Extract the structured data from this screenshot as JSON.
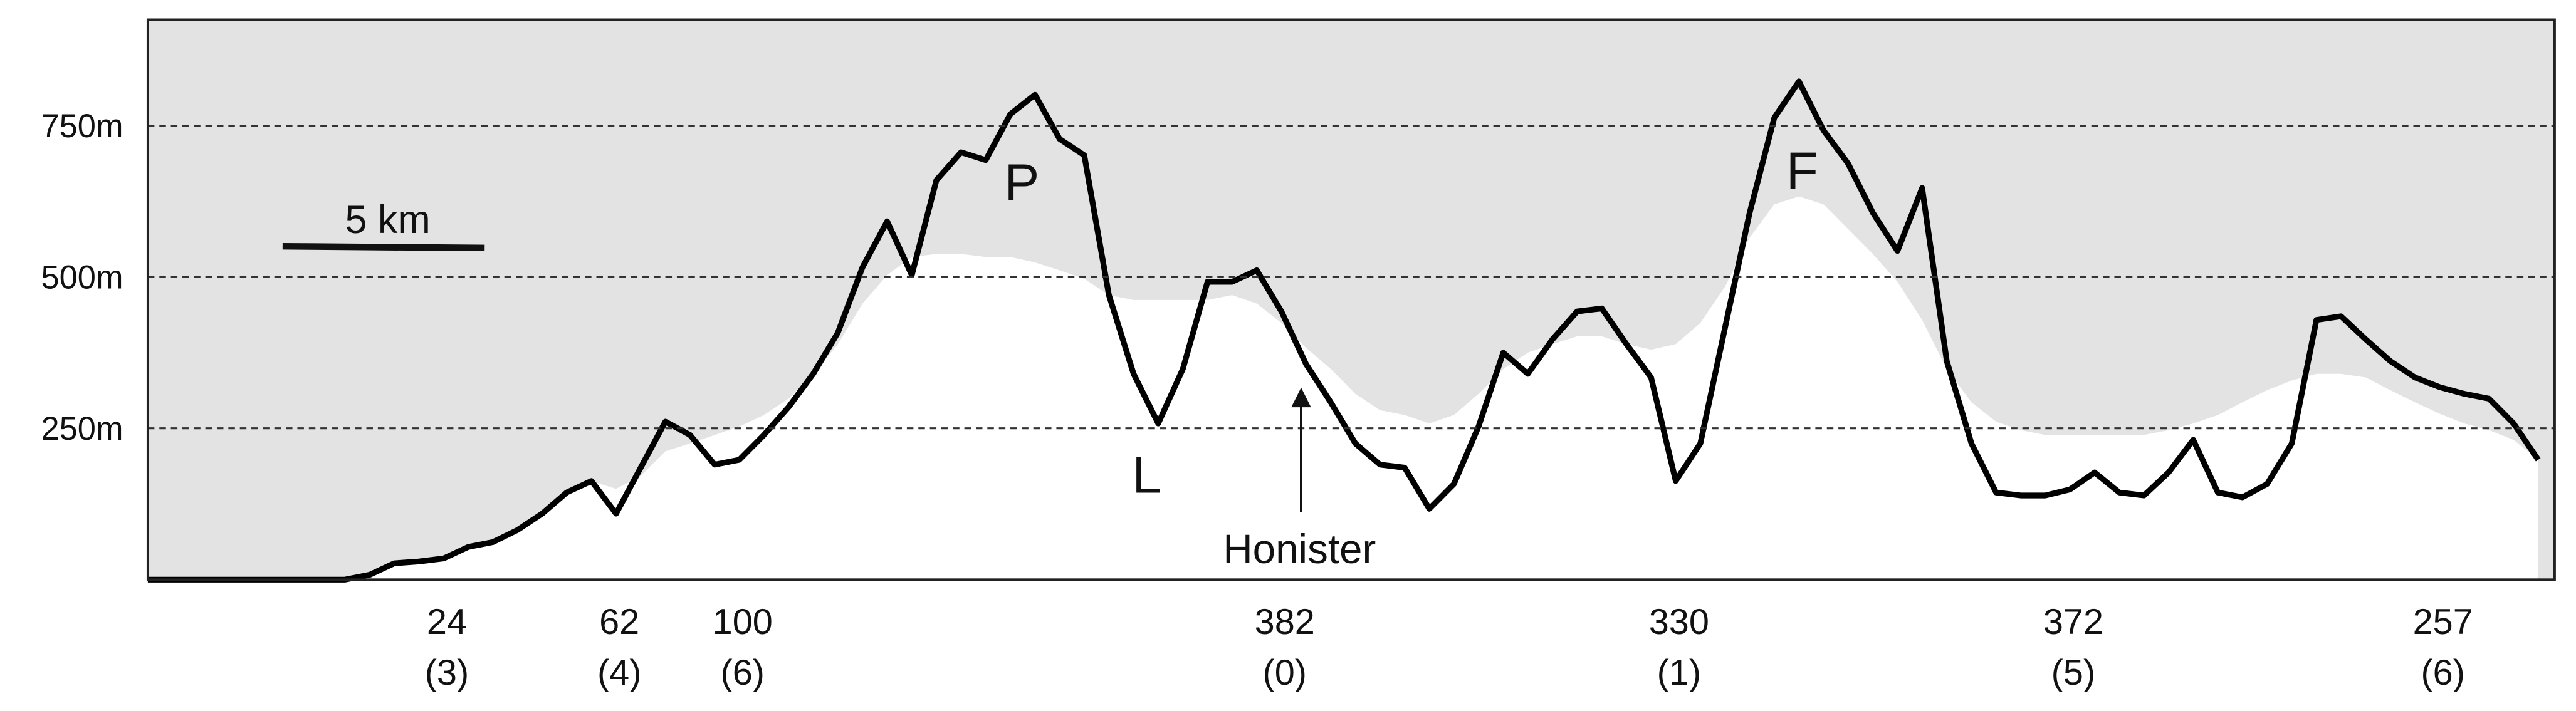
{
  "chart_data": {
    "type": "line",
    "ylim": [
      0,
      925
    ],
    "yticks": [
      {
        "value": 250,
        "label": "250m"
      },
      {
        "value": 500,
        "label": "500m"
      },
      {
        "value": 750,
        "label": "750m"
      }
    ],
    "grid": true,
    "background": "#e3e3e3",
    "categories": [
      null,
      null,
      null,
      null,
      null,
      null,
      null,
      null,
      null,
      null,
      null,
      null,
      "24",
      null,
      null,
      null,
      null,
      null,
      null,
      "62",
      null,
      null,
      null,
      null,
      "100",
      null,
      null,
      null,
      null,
      null,
      null,
      null,
      null,
      null,
      null,
      null,
      null,
      null,
      null,
      null,
      null,
      null,
      null,
      null,
      null,
      null,
      "382",
      null,
      null,
      null,
      null,
      null,
      null,
      null,
      null,
      null,
      null,
      null,
      null,
      null,
      null,
      null,
      "330",
      null,
      null,
      null,
      null,
      null,
      null,
      null,
      null,
      null,
      null,
      null,
      null,
      null,
      null,
      null,
      "372",
      null,
      null,
      null,
      null,
      null,
      null,
      null,
      null,
      null,
      null,
      null,
      null,
      null,
      null,
      "257",
      null,
      null,
      null,
      null
    ],
    "sublabels": [
      null,
      null,
      null,
      null,
      null,
      null,
      null,
      null,
      null,
      null,
      null,
      null,
      "(3)",
      null,
      null,
      null,
      null,
      null,
      null,
      "(4)",
      null,
      null,
      null,
      null,
      "(6)",
      null,
      null,
      null,
      null,
      null,
      null,
      null,
      null,
      null,
      null,
      null,
      null,
      null,
      null,
      null,
      null,
      null,
      null,
      null,
      null,
      null,
      "(0)",
      null,
      null,
      null,
      null,
      null,
      null,
      null,
      null,
      null,
      null,
      null,
      null,
      null,
      null,
      null,
      "(1)",
      null,
      null,
      null,
      null,
      null,
      null,
      null,
      null,
      null,
      null,
      null,
      null,
      null,
      null,
      null,
      "(5)",
      null,
      null,
      null,
      null,
      null,
      null,
      null,
      null,
      null,
      null,
      null,
      null,
      null,
      null,
      "(6)",
      null,
      null,
      null,
      null
    ],
    "series": [
      {
        "color": "#ffffff",
        "style": "area",
        "values": [
          0,
          0,
          0,
          0,
          0,
          0,
          0,
          0,
          0,
          8,
          27,
          30,
          35,
          54,
          62,
          82,
          109,
          144,
          163,
          150,
          171,
          212,
          225,
          239,
          253,
          272,
          299,
          340,
          389,
          456,
          503,
          533,
          538,
          538,
          533,
          533,
          524,
          511,
          497,
          470,
          462,
          462,
          462,
          462,
          470,
          456,
          424,
          383,
          348,
          307,
          280,
          272,
          258,
          272,
          307,
          348,
          375,
          389,
          402,
          402,
          389,
          380,
          389,
          424,
          484,
          565,
          620,
          633,
          620,
          579,
          538,
          492,
          429,
          348,
          293,
          261,
          247,
          239,
          239,
          239,
          239,
          239,
          247,
          258,
          272,
          293,
          313,
          329,
          340,
          340,
          334,
          313,
          293,
          274,
          258,
          247,
          231,
          198
        ]
      },
      {
        "color": "#000000",
        "style": "line",
        "values": [
          0,
          0,
          0,
          0,
          0,
          0,
          0,
          0,
          0,
          8,
          27,
          30,
          35,
          54,
          62,
          82,
          109,
          144,
          163,
          109,
          185,
          261,
          239,
          190,
          198,
          239,
          285,
          340,
          408,
          516,
          592,
          503,
          660,
          706,
          693,
          769,
          801,
          728,
          701,
          470,
          340,
          258,
          348,
          492,
          492,
          511,
          443,
          356,
          293,
          225,
          190,
          185,
          117,
          158,
          253,
          375,
          340,
          397,
          443,
          448,
          389,
          334,
          163,
          225,
          416,
          606,
          763,
          823,
          742,
          687,
          606,
          543,
          647,
          361,
          225,
          144,
          139,
          139,
          149,
          177,
          144,
          139,
          177,
          231,
          144,
          136,
          158,
          225,
          429,
          435,
          397,
          361,
          334,
          318,
          307,
          299,
          258,
          198
        ]
      }
    ],
    "annotations": [
      "P",
      "L",
      "F",
      "Honister",
      "5 km"
    ]
  }
}
